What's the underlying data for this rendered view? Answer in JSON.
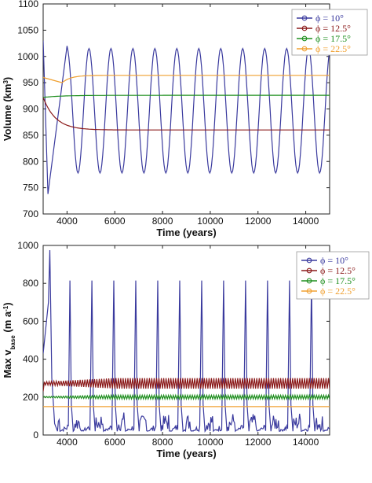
{
  "chart_data": [
    {
      "type": "line",
      "xlabel": "Time (years)",
      "ylabel": "Volume (km³)",
      "ylabel_base": "Volume (km",
      "ylabel_sup": "3",
      "ylabel_tail": ")",
      "xlim": [
        3000,
        15000
      ],
      "ylim": [
        700,
        1100
      ],
      "xticks": [
        4000,
        6000,
        8000,
        10000,
        12000,
        14000
      ],
      "yticks": [
        700,
        750,
        800,
        850,
        900,
        950,
        1000,
        1050,
        1100
      ],
      "grid": false,
      "legend_position": "top-right",
      "series": [
        {
          "name": "ϕ = 10°",
          "color": "#3a3a9e",
          "kind": "oscillation",
          "start": 1030,
          "first_min": [
            3200,
            738
          ],
          "first_max": [
            4000,
            1020
          ],
          "period": 920,
          "min": 778,
          "max": 1015
        },
        {
          "name": "ϕ = 12.5°",
          "color": "#8b1a1a",
          "kind": "relax",
          "start": 922,
          "end": 860,
          "tau": 520,
          "t0": 3000
        },
        {
          "name": "ϕ = 17.5°",
          "color": "#1f8f1f",
          "kind": "relax",
          "start": 922,
          "end": 926,
          "tau": 800,
          "t0": 3000
        },
        {
          "name": "ϕ = 22.5°",
          "color": "#f0a030",
          "kind": "dip",
          "start": 960,
          "dip": 950,
          "dip_at": 3800,
          "end": 964,
          "t0": 3000
        }
      ]
    },
    {
      "type": "line",
      "xlabel": "Time (years)",
      "ylabel": "Max v_base (m a⁻¹)",
      "ylabel_base": "Max v",
      "ylabel_sub": "base",
      "ylabel_mid": " (m a",
      "ylabel_sup": "-1",
      "ylabel_tail": ")",
      "xlim": [
        3000,
        15000
      ],
      "ylim": [
        0,
        1000
      ],
      "xticks": [
        4000,
        6000,
        8000,
        10000,
        12000,
        14000
      ],
      "yticks": [
        0,
        200,
        400,
        600,
        800,
        1000
      ],
      "grid": false,
      "legend_position": "top-right",
      "series": [
        {
          "name": "ϕ = 10°",
          "color": "#3a3a9e",
          "kind": "spikes",
          "first_spike": [
            3280,
            975
          ],
          "period": 920,
          "spike_start": 4120,
          "peak": 815,
          "base": 20
        },
        {
          "name": "ϕ = 12.5°",
          "color": "#8b1a1a",
          "kind": "band",
          "low": 245,
          "high": 300,
          "start": 230
        },
        {
          "name": "ϕ = 17.5°",
          "color": "#1f8f1f",
          "kind": "band",
          "low": 190,
          "high": 210,
          "start": 200
        },
        {
          "name": "ϕ = 22.5°",
          "color": "#f0a030",
          "kind": "flat",
          "value": 150
        }
      ]
    }
  ]
}
